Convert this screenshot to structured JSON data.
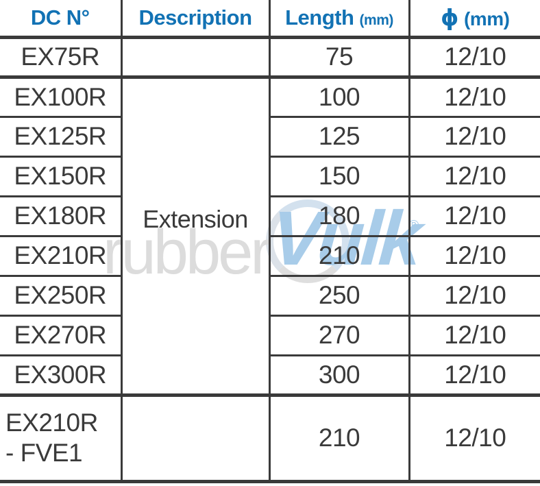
{
  "colors": {
    "header_text_blue": "#1272b4",
    "grid_line": "#3a3a3a",
    "body_text": "#3a3a3a",
    "watermark_gray": "#dcdcdc",
    "watermark_blue": "#a8cce9"
  },
  "table": {
    "headers": {
      "dc": "DC N°",
      "description": "Description",
      "length": "Length",
      "length_unit": "(mm)",
      "phi": "ϕ",
      "phi_unit": "(mm)"
    },
    "rows": [
      {
        "dc": "EX75R",
        "description": "",
        "length": "75",
        "phi": "12/10"
      },
      {
        "dc": "EX100R",
        "description": "Extension",
        "length": "100",
        "phi": "12/10"
      },
      {
        "dc": "EX125R",
        "length": "125",
        "phi": "12/10"
      },
      {
        "dc": "EX150R",
        "length": "150",
        "phi": "12/10"
      },
      {
        "dc": "EX180R",
        "length": "180",
        "phi": "12/10"
      },
      {
        "dc": "EX210R",
        "length": "210",
        "phi": "12/10"
      },
      {
        "dc": "EX250R",
        "length": "250",
        "phi": "12/10"
      },
      {
        "dc": "EX270R",
        "length": "270",
        "phi": "12/10"
      },
      {
        "dc": "EX300R",
        "length": "300",
        "phi": "12/10"
      },
      {
        "dc_line1": "EX210R",
        "dc_line2": "- FVE1",
        "description": "",
        "length": "210",
        "phi": "12/10"
      }
    ]
  },
  "watermark": {
    "text_gray": "rubber",
    "text_blue": "Vulk",
    "registered": "®"
  }
}
